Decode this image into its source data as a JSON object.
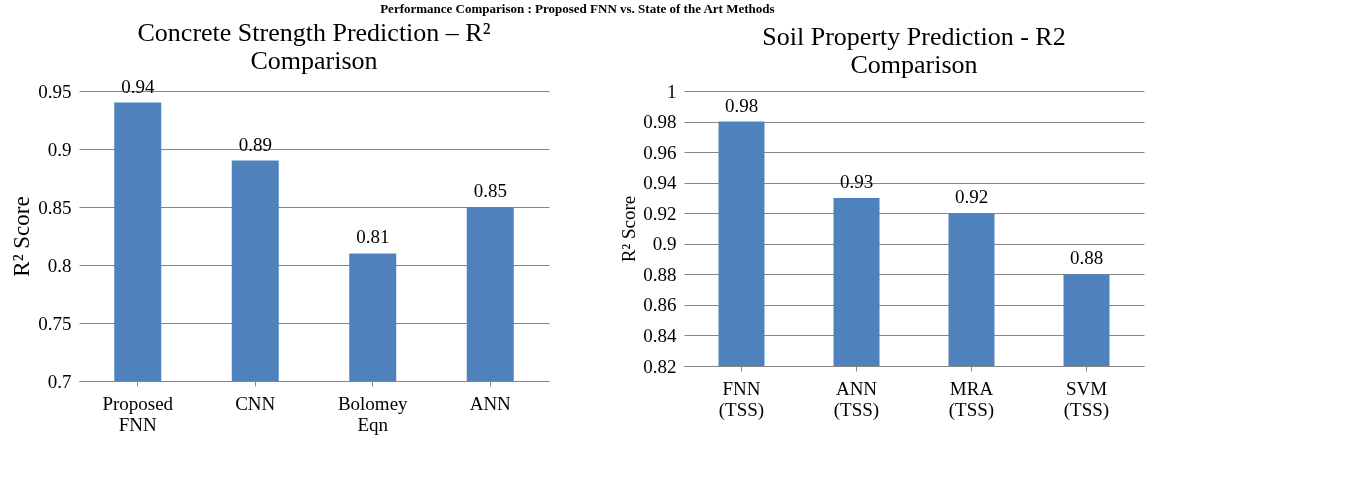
{
  "chart_data": [
    {
      "type": "bar",
      "title": "Concrete Strength Prediction – R² Comparison",
      "ylabel": "R² Score",
      "categories": [
        "Proposed FNN",
        "CNN",
        "Bolomey Eqn",
        "ANN"
      ],
      "values": [
        0.94,
        0.89,
        0.81,
        0.85
      ],
      "color": "#4f81bd",
      "ylim": [
        0.7,
        0.95
      ],
      "yticks": [
        0.7,
        0.75,
        0.8,
        0.85,
        0.9,
        0.95
      ],
      "grid": "y",
      "data_labels": true,
      "annotations": [
        "Performance Comparison : Proposed FNN vs. State of the Art Methods"
      ]
    },
    {
      "type": "bar",
      "title": "Soil Property Prediction - R2 Comparison",
      "ylabel": "R² Score",
      "categories": [
        "FNN (TSS)",
        "ANN (TSS)",
        "MRA (TSS)",
        "SVM (TSS)"
      ],
      "values": [
        0.98,
        0.93,
        0.92,
        0.88
      ],
      "color": "#4f81bd",
      "ylim": [
        0.82,
        1
      ],
      "yticks": [
        0.82,
        0.84,
        0.86,
        0.88,
        0.9,
        0.92,
        0.94,
        0.96,
        0.98,
        1
      ],
      "grid": "y",
      "data_labels": true
    }
  ]
}
